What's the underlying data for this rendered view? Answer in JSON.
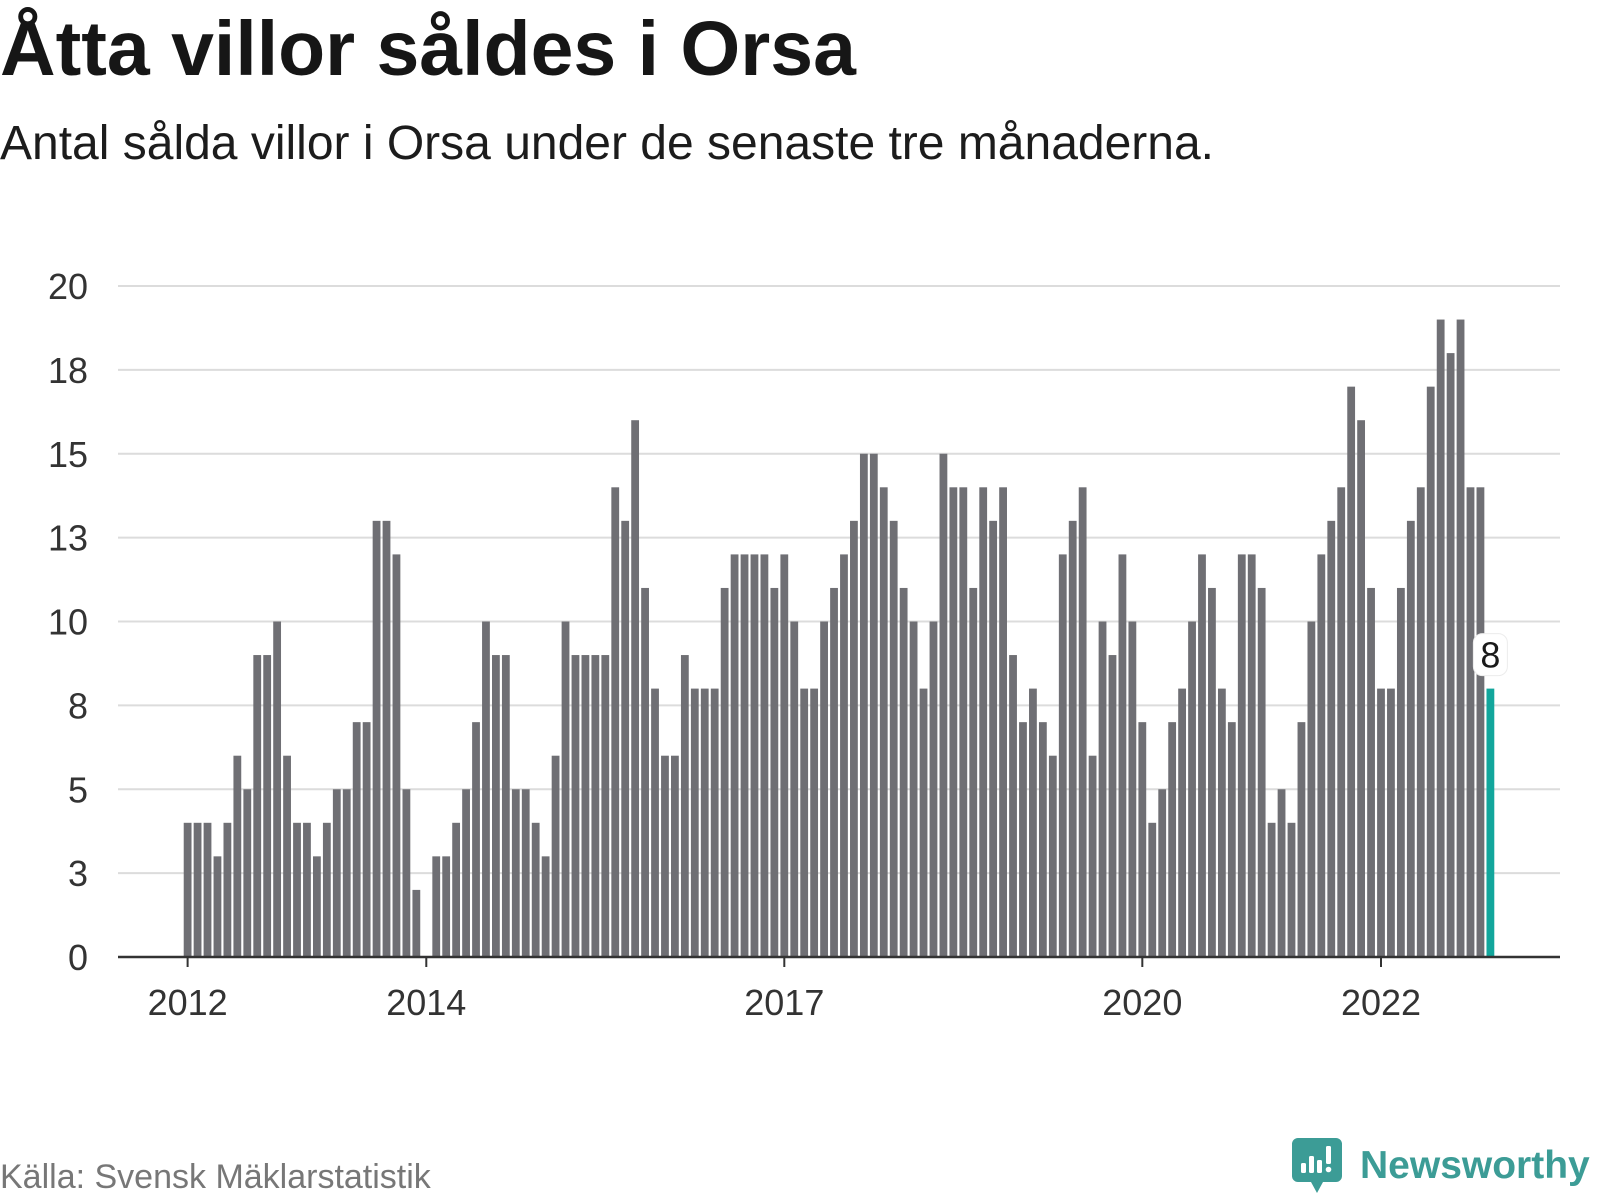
{
  "chart_data": {
    "type": "bar",
    "title": "Åtta villor såldes i Orsa",
    "subtitle": "Antal sålda villor i Orsa under de senaste tre månaderna.",
    "x": [
      "2012-01",
      "2012-02",
      "2012-03",
      "2012-04",
      "2012-05",
      "2012-06",
      "2012-07",
      "2012-08",
      "2012-09",
      "2012-10",
      "2012-11",
      "2012-12",
      "2013-01",
      "2013-02",
      "2013-03",
      "2013-04",
      "2013-05",
      "2013-06",
      "2013-07",
      "2013-08",
      "2013-09",
      "2013-10",
      "2013-11",
      "2013-12",
      "2014-01",
      "2014-02",
      "2014-03",
      "2014-04",
      "2014-05",
      "2014-06",
      "2014-07",
      "2014-08",
      "2014-09",
      "2014-10",
      "2014-11",
      "2014-12",
      "2015-01",
      "2015-02",
      "2015-03",
      "2015-04",
      "2015-05",
      "2015-06",
      "2015-07",
      "2015-08",
      "2015-09",
      "2015-10",
      "2015-11",
      "2015-12",
      "2016-01",
      "2016-02",
      "2016-03",
      "2016-04",
      "2016-05",
      "2016-06",
      "2016-07",
      "2016-08",
      "2016-09",
      "2016-10",
      "2016-11",
      "2016-12",
      "2017-01",
      "2017-02",
      "2017-03",
      "2017-04",
      "2017-05",
      "2017-06",
      "2017-07",
      "2017-08",
      "2017-09",
      "2017-10",
      "2017-11",
      "2017-12",
      "2018-01",
      "2018-02",
      "2018-03",
      "2018-04",
      "2018-05",
      "2018-06",
      "2018-07",
      "2018-08",
      "2018-09",
      "2018-10",
      "2018-11",
      "2018-12",
      "2019-01",
      "2019-02",
      "2019-03",
      "2019-04",
      "2019-05",
      "2019-06",
      "2019-07",
      "2019-08",
      "2019-09",
      "2019-10",
      "2019-11",
      "2019-12",
      "2020-01",
      "2020-02",
      "2020-03",
      "2020-04",
      "2020-05",
      "2020-06",
      "2020-07",
      "2020-08",
      "2020-09",
      "2020-10",
      "2020-11",
      "2020-12",
      "2021-01",
      "2021-02",
      "2021-03",
      "2021-04",
      "2021-05",
      "2021-06",
      "2021-07",
      "2021-08",
      "2021-09",
      "2021-10",
      "2021-11",
      "2021-12",
      "2022-01",
      "2022-02",
      "2022-03",
      "2022-04",
      "2022-05",
      "2022-06",
      "2022-07",
      "2022-08",
      "2022-09",
      "2022-10",
      "2022-11",
      "2022-12"
    ],
    "values": [
      4,
      4,
      4,
      3,
      4,
      6,
      5,
      9,
      9,
      10,
      6,
      4,
      4,
      3,
      4,
      5,
      5,
      7,
      7,
      13,
      13,
      12,
      5,
      2,
      0,
      3,
      3,
      4,
      5,
      7,
      10,
      9,
      9,
      5,
      5,
      4,
      3,
      6,
      10,
      9,
      9,
      9,
      9,
      14,
      13,
      16,
      11,
      8,
      6,
      6,
      9,
      8,
      8,
      8,
      11,
      12,
      12,
      12,
      12,
      11,
      12,
      10,
      8,
      8,
      10,
      11,
      12,
      13,
      15,
      15,
      14,
      13,
      11,
      10,
      8,
      10,
      15,
      14,
      14,
      11,
      14,
      13,
      14,
      9,
      7,
      8,
      7,
      6,
      12,
      13,
      14,
      6,
      10,
      9,
      12,
      10,
      7,
      4,
      5,
      7,
      8,
      10,
      12,
      11,
      8,
      7,
      12,
      12,
      11,
      4,
      5,
      4,
      7,
      10,
      12,
      13,
      14,
      17,
      16,
      11,
      8,
      8,
      11,
      13,
      14,
      17,
      19,
      18,
      19,
      14,
      14,
      8
    ],
    "ylim": [
      0,
      20
    ],
    "xlim": [
      "2011-06",
      "2023-07"
    ],
    "yticks": [
      0,
      2.5,
      5,
      7.5,
      10,
      12.5,
      15,
      17.5,
      20
    ],
    "ytick_labels": [
      "0",
      "3",
      "5",
      "8",
      "10",
      "13",
      "15",
      "18",
      "20"
    ],
    "xticks": [
      "2012-01",
      "2014-01",
      "2017-01",
      "2020-01",
      "2022-01"
    ],
    "xtick_labels": [
      "2012",
      "2014",
      "2017",
      "2020",
      "2022"
    ],
    "grid": true,
    "legend": false,
    "highlight": {
      "x": "2022-12",
      "label": "8"
    },
    "colors": {
      "bar": "#6f6f74",
      "highlight": "#12a69c",
      "grid": "#dcdcdc",
      "axis": "#333333",
      "text": "#333333"
    }
  },
  "source": "Källa: Svensk Mäklarstatistik",
  "logo": {
    "text": "Newsworthy",
    "icon": "bar-chart-speech-bubble-icon",
    "color": "#3c9c96"
  }
}
